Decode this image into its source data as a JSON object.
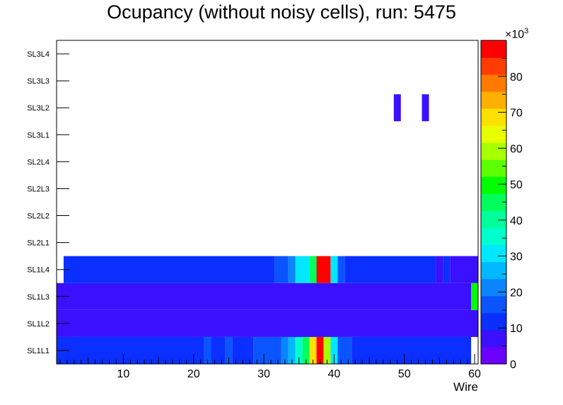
{
  "chart_data": {
    "type": "heatmap",
    "title": "Ocupancy (without noisy cells), run: 5475",
    "xlabel": "Wire",
    "ylabel": "",
    "xlim": [
      0.5,
      60.5
    ],
    "x_ticks": [
      10,
      20,
      30,
      40,
      50,
      60
    ],
    "y_categories": [
      "SL1L1",
      "SL1L2",
      "SL1L3",
      "SL1L4",
      "SL2L1",
      "SL2L2",
      "SL2L3",
      "SL2L4",
      "SL3L1",
      "SL3L2",
      "SL3L3",
      "SL3L4"
    ],
    "z_range": [
      0,
      90000
    ],
    "z_ticks": [
      0,
      10,
      20,
      30,
      40,
      50,
      60,
      70,
      80
    ],
    "z_multiplier_prefix": "×10",
    "z_multiplier_exp": "3",
    "palette": [
      "#6a00ff",
      "#3a10ff",
      "#0a2fff",
      "#0a55ff",
      "#0a85ff",
      "#00b8ff",
      "#00e8ff",
      "#00ffcc",
      "#00ff9a",
      "#00ff5a",
      "#00ff00",
      "#5cff00",
      "#a8ff00",
      "#e8ff00",
      "#ffe000",
      "#ffb000",
      "#ff7a00",
      "#ff3c00",
      "#ff0000"
    ],
    "rows": [
      {
        "layer": "SL1L1",
        "segments": [
          [
            1,
            21,
            10000
          ],
          [
            22,
            22,
            16000
          ],
          [
            23,
            24,
            10000
          ],
          [
            25,
            25,
            16000
          ],
          [
            26,
            28,
            10000
          ],
          [
            29,
            32,
            16000
          ],
          [
            33,
            33,
            21000
          ],
          [
            34,
            34,
            26000
          ],
          [
            35,
            35,
            34000
          ],
          [
            36,
            36,
            46000
          ],
          [
            37,
            37,
            70000
          ],
          [
            38,
            38,
            88000
          ],
          [
            39,
            39,
            58000
          ],
          [
            40,
            40,
            30000
          ],
          [
            41,
            42,
            17000
          ],
          [
            43,
            59,
            10000
          ]
        ]
      },
      {
        "layer": "SL1L2",
        "segments": [
          [
            1,
            60,
            5000
          ]
        ]
      },
      {
        "layer": "SL1L3",
        "segments": [
          [
            1,
            59,
            5000
          ],
          [
            60,
            60,
            50000
          ]
        ]
      },
      {
        "layer": "SL1L4",
        "segments": [
          [
            2,
            31,
            10000
          ],
          [
            32,
            33,
            16000
          ],
          [
            34,
            34,
            21000
          ],
          [
            35,
            36,
            30000
          ],
          [
            37,
            37,
            46000
          ],
          [
            38,
            39,
            86000
          ],
          [
            40,
            40,
            30000
          ],
          [
            41,
            41,
            17000
          ],
          [
            42,
            54,
            10000
          ],
          [
            55,
            55,
            5000
          ],
          [
            56,
            56,
            10000
          ],
          [
            57,
            60,
            8000
          ]
        ]
      },
      {
        "layer": "SL2L1",
        "segments": []
      },
      {
        "layer": "SL2L2",
        "segments": []
      },
      {
        "layer": "SL2L3",
        "segments": []
      },
      {
        "layer": "SL2L4",
        "segments": []
      },
      {
        "layer": "SL3L1",
        "segments": []
      },
      {
        "layer": "SL3L2",
        "segments": [
          [
            49,
            49,
            5000
          ],
          [
            53,
            53,
            5000
          ]
        ]
      },
      {
        "layer": "SL3L3",
        "segments": []
      },
      {
        "layer": "SL3L4",
        "segments": []
      }
    ]
  }
}
